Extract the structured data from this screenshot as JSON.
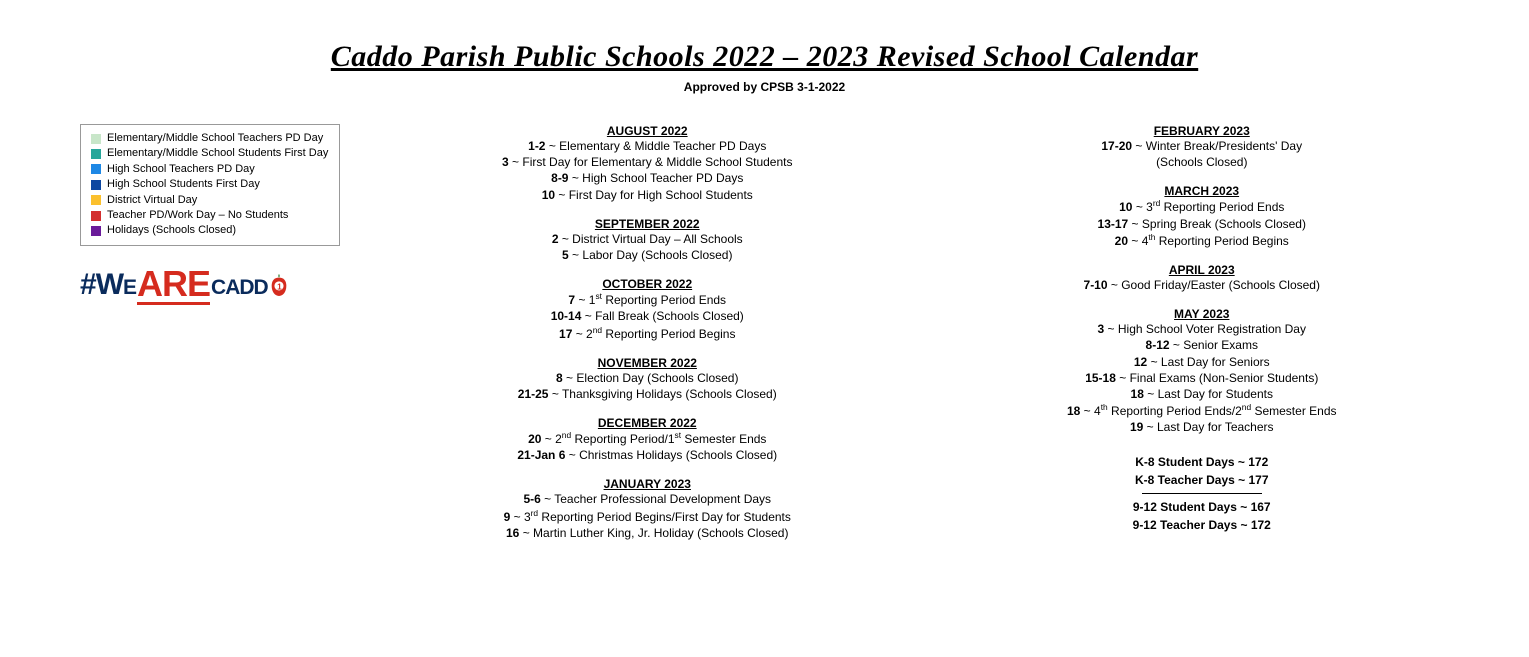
{
  "title": "Caddo Parish Public Schools 2022 – 2023 Revised School Calendar",
  "subtitle": "Approved by CPSB 3-1-2022",
  "legend": [
    {
      "color": "#c8e6c9",
      "label": "Elementary/Middle School Teachers PD Day"
    },
    {
      "color": "#26a69a",
      "label": "Elementary/Middle School Students First Day"
    },
    {
      "color": "#1e88e5",
      "label": "High School Teachers PD Day"
    },
    {
      "color": "#0d47a1",
      "label": "High School Students First Day"
    },
    {
      "color": "#fbc02d",
      "label": "District Virtual Day"
    },
    {
      "color": "#d32f2f",
      "label": "Teacher PD/Work Day – No Students"
    },
    {
      "color": "#6a1b9a",
      "label": "Holidays (Schools Closed)"
    }
  ],
  "logo": {
    "hash": "#",
    "we": "We",
    "are": "Are",
    "cadd": "cadd"
  },
  "months_col1": [
    {
      "title": "AUGUST 2022",
      "events": [
        {
          "dates": "1-2",
          "desc": "Elementary & Middle Teacher PD Days"
        },
        {
          "dates": "3",
          "desc": "First Day for Elementary & Middle School Students"
        },
        {
          "dates": "8-9",
          "desc": "High School Teacher PD Days"
        },
        {
          "dates": "10",
          "desc": "First Day for High School Students"
        }
      ]
    },
    {
      "title": "SEPTEMBER 2022",
      "events": [
        {
          "dates": "2",
          "desc": "District Virtual Day – All Schools"
        },
        {
          "dates": "5",
          "desc": "Labor Day (Schools Closed)"
        }
      ]
    },
    {
      "title": "OCTOBER 2022",
      "events": [
        {
          "dates": "7",
          "desc": "1<sup>st</sup> Reporting Period Ends"
        },
        {
          "dates": "10-14",
          "desc": "Fall Break (Schools Closed)"
        },
        {
          "dates": "17",
          "desc": "2<sup>nd</sup> Reporting Period Begins"
        }
      ]
    },
    {
      "title": "NOVEMBER 2022",
      "events": [
        {
          "dates": "8",
          "desc": "Election Day (Schools Closed)"
        },
        {
          "dates": "21-25",
          "desc": "Thanksgiving Holidays (Schools Closed)"
        }
      ]
    },
    {
      "title": "DECEMBER 2022",
      "events": [
        {
          "dates": "20",
          "desc": "2<sup>nd</sup> Reporting Period/1<sup>st</sup> Semester Ends"
        },
        {
          "dates": "21-Jan 6",
          "desc": "Christmas Holidays (Schools Closed)"
        }
      ]
    },
    {
      "title": "JANUARY 2023",
      "events": [
        {
          "dates": "5-6",
          "desc": "Teacher Professional Development Days"
        },
        {
          "dates": "9",
          "desc": "3<sup>rd</sup> Reporting Period Begins/First Day for Students"
        },
        {
          "dates": "16",
          "desc": "Martin Luther King, Jr. Holiday (Schools Closed)"
        }
      ]
    }
  ],
  "months_col2": [
    {
      "title": "FEBRUARY 2023",
      "events": [
        {
          "dates": "17-20",
          "desc": "Winter Break/Presidents' Day"
        },
        {
          "dates": "",
          "desc": "(Schools Closed)"
        }
      ]
    },
    {
      "title": "MARCH 2023",
      "events": [
        {
          "dates": "10",
          "desc": "3<sup>rd</sup> Reporting Period Ends"
        },
        {
          "dates": "13-17",
          "desc": "Spring Break (Schools Closed)"
        },
        {
          "dates": "20",
          "desc": "4<sup>th</sup> Reporting Period Begins"
        }
      ]
    },
    {
      "title": "APRIL 2023",
      "events": [
        {
          "dates": "7-10",
          "desc": "Good Friday/Easter (Schools Closed)"
        }
      ]
    },
    {
      "title": "MAY 2023",
      "events": [
        {
          "dates": "3",
          "desc": "High School Voter Registration Day"
        },
        {
          "dates": "8-12",
          "desc": "Senior Exams"
        },
        {
          "dates": "12",
          "desc": "Last Day for Seniors"
        },
        {
          "dates": "15-18",
          "desc": "Final Exams (Non-Senior Students)"
        },
        {
          "dates": "18",
          "desc": "Last Day for Students"
        },
        {
          "dates": "18",
          "desc": "4<sup>th</sup> Reporting Period Ends/2<sup>nd</sup> Semester Ends"
        },
        {
          "dates": "19",
          "desc": "Last Day for Teachers"
        }
      ]
    }
  ],
  "summary": {
    "k8_student": "K-8 Student Days  ~  172",
    "k8_teacher": "K-8 Teacher Days ~  177",
    "hs_student": "9-12 Student Days ~  167",
    "hs_teacher": "9-12 Teacher Days  ~  172"
  }
}
